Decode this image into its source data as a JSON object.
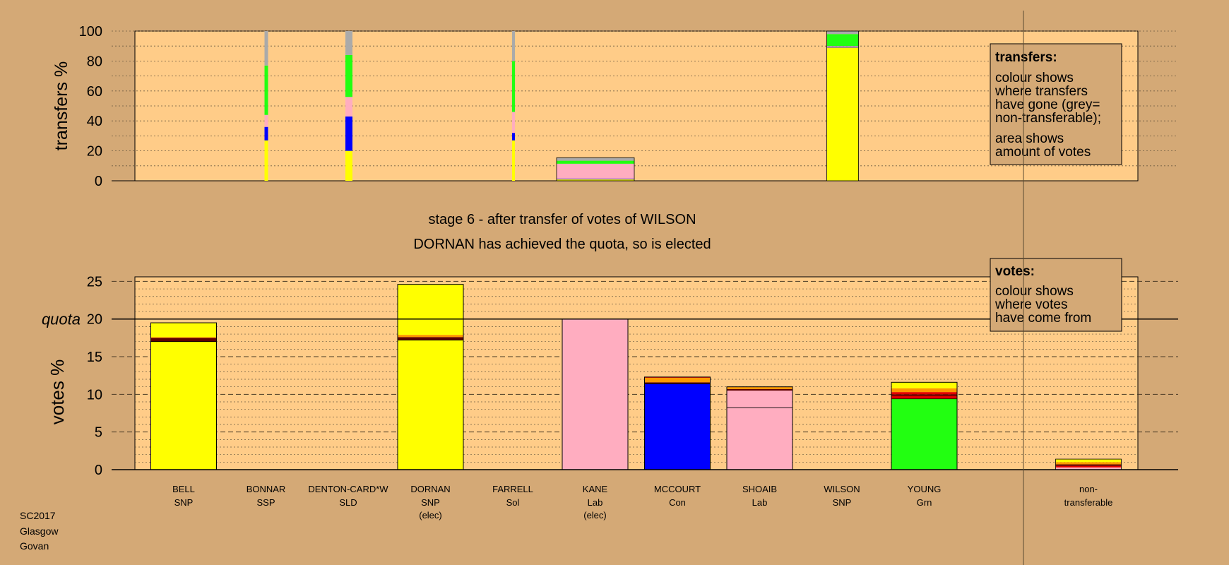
{
  "chart_data": [
    {
      "type": "bar",
      "ylabel": "transfers %",
      "ylim": [
        0,
        100
      ],
      "yticks": [
        0,
        20,
        40,
        60,
        80,
        100
      ],
      "legend": {
        "title": "transfers:",
        "lines1": [
          "colour shows",
          "where transfers",
          "have gone (grey=",
          "non-transferable);"
        ],
        "lines2": [
          "area shows",
          "amount of votes"
        ]
      },
      "columns": [
        {
          "candidate": "BONNAR",
          "segments": [
            {
              "party": "SNP",
              "value": 27
            },
            {
              "party": "Con",
              "value": 9
            },
            {
              "party": "Lab",
              "value": 8
            },
            {
              "party": "Grn",
              "value": 33
            },
            {
              "party": "Non-transferable",
              "value": 23
            }
          ]
        },
        {
          "candidate": "DENTON-CARD*W",
          "segments": [
            {
              "party": "SNP",
              "value": 20
            },
            {
              "party": "Con",
              "value": 23
            },
            {
              "party": "Lab",
              "value": 13
            },
            {
              "party": "Grn",
              "value": 28
            },
            {
              "party": "Non-transferable",
              "value": 16
            }
          ]
        },
        {
          "candidate": "FARRELL",
          "segments": [
            {
              "party": "SNP",
              "value": 27
            },
            {
              "party": "Con",
              "value": 5
            },
            {
              "party": "Lab",
              "value": 14
            },
            {
              "party": "Grn",
              "value": 34
            },
            {
              "party": "Non-transferable",
              "value": 20
            }
          ]
        },
        {
          "candidate": "KANE",
          "segments": [
            {
              "party": "SNP",
              "value": 1
            },
            {
              "party": "Con",
              "value": 0.4
            },
            {
              "party": "Lab",
              "value": 10
            },
            {
              "party": "Grn",
              "value": 2
            },
            {
              "party": "Non-transferable",
              "value": 2
            }
          ]
        },
        {
          "candidate": "WILSON",
          "segments": [
            {
              "party": "SNP",
              "value": 89
            },
            {
              "party": "Con",
              "value": 0.5
            },
            {
              "party": "Lab",
              "value": 0.5
            },
            {
              "party": "Grn",
              "value": 8
            },
            {
              "party": "Non-transferable",
              "value": 2
            }
          ]
        }
      ]
    },
    {
      "type": "bar",
      "ylabel": "votes %",
      "ylim": [
        0,
        25
      ],
      "yticks": [
        0,
        5,
        10,
        15,
        20,
        25
      ],
      "quota": 20,
      "quota_label": "quota",
      "legend": {
        "title": "votes:",
        "lines": [
          "colour shows",
          "where votes",
          "have come from"
        ]
      },
      "candidates": [
        {
          "name": "BELL",
          "party": "SNP",
          "note": "",
          "segments": [
            {
              "source": "first preferences",
              "color": "#ffff00",
              "value": 17
            },
            {
              "source": "transfer",
              "color": "#5c0000",
              "value": 0.5
            },
            {
              "source": "transfer",
              "color": "#ff9900",
              "value": 0.1
            },
            {
              "source": "transfer",
              "color": "#ffff00",
              "value": 1.9
            }
          ]
        },
        {
          "name": "BONNAR",
          "party": "SSP",
          "note": "",
          "segments": []
        },
        {
          "name": "DENTON-CARD*W",
          "party": "SLD",
          "note": "",
          "segments": []
        },
        {
          "name": "DORNAN",
          "party": "SNP",
          "note": "(elec)",
          "segments": [
            {
              "source": "first preferences",
              "color": "#ffff00",
              "value": 17.2
            },
            {
              "source": "transfer",
              "color": "#5c0000",
              "value": 0.4
            },
            {
              "source": "transfer",
              "color": "#ff9900",
              "value": 0.3
            },
            {
              "source": "transfer",
              "color": "#ffff00",
              "value": 6.7
            }
          ]
        },
        {
          "name": "FARRELL",
          "party": "Sol",
          "note": "",
          "segments": []
        },
        {
          "name": "KANE",
          "party": "Lab",
          "note": "(elec)",
          "segments": [
            {
              "source": "first preferences",
              "color": "#ffadc0",
              "value": 20
            }
          ]
        },
        {
          "name": "MCCOURT",
          "party": "Con",
          "note": "",
          "segments": [
            {
              "source": "first preferences",
              "color": "#0000ff",
              "value": 11.4
            },
            {
              "source": "transfer",
              "color": "#5c0000",
              "value": 0.2
            },
            {
              "source": "transfer",
              "color": "#ff9900",
              "value": 0.6
            },
            {
              "source": "transfer",
              "color": "#e00000",
              "value": 0.1
            }
          ]
        },
        {
          "name": "SHOAIB",
          "party": "Lab",
          "note": "",
          "segments": [
            {
              "source": "first preferences",
              "color": "#ffadc0",
              "value": 8.2
            },
            {
              "source": "transfer",
              "color": "#ffadc0",
              "value": 2.3
            },
            {
              "source": "transfer",
              "color": "#5c0000",
              "value": 0.2
            },
            {
              "source": "transfer",
              "color": "#ff9900",
              "value": 0.3
            }
          ]
        },
        {
          "name": "WILSON",
          "party": "SNP",
          "note": "",
          "segments": []
        },
        {
          "name": "YOUNG",
          "party": "Grn",
          "note": "",
          "segments": [
            {
              "source": "first preferences",
              "color": "#22ff11",
              "value": 9.4
            },
            {
              "source": "transfer",
              "color": "#e00000",
              "value": 0.4
            },
            {
              "source": "transfer",
              "color": "#5c0000",
              "value": 0.2
            },
            {
              "source": "transfer",
              "color": "#e00000",
              "value": 0.3
            },
            {
              "source": "transfer",
              "color": "#ff9900",
              "value": 0.5
            },
            {
              "source": "transfer",
              "color": "#ffff00",
              "value": 0.8
            }
          ]
        }
      ],
      "nontransferable": {
        "label1": "non-",
        "label2": "transferable",
        "segments": [
          {
            "source": "transfer",
            "color": "#ffadc0",
            "value": 0.3
          },
          {
            "source": "transfer",
            "color": "#e00000",
            "value": 0.2
          },
          {
            "source": "transfer",
            "color": "#5c0000",
            "value": 0.2
          },
          {
            "source": "transfer",
            "color": "#ff9900",
            "value": 0.3
          },
          {
            "source": "transfer",
            "color": "#ffff00",
            "value": 0.4
          }
        ]
      }
    }
  ],
  "stage_text": {
    "line1": "stage 6 - after transfer of votes of WILSON",
    "line2": "DORNAN has achieved the quota, so is elected"
  },
  "footer": [
    "SC2017",
    "Glasgow",
    "Govan"
  ],
  "party_colors": {
    "SNP": "#ffff00",
    "Con": "#0000ff",
    "Lab": "#ffadc0",
    "Grn": "#22ff11",
    "Non-transferable": "#aaaaaa",
    "SSP": "#e00000",
    "SLD": "#ff9900",
    "Sol": "#5c0000"
  },
  "colors": {
    "background": "#d4a976",
    "plot_background": "#ffcc88"
  }
}
